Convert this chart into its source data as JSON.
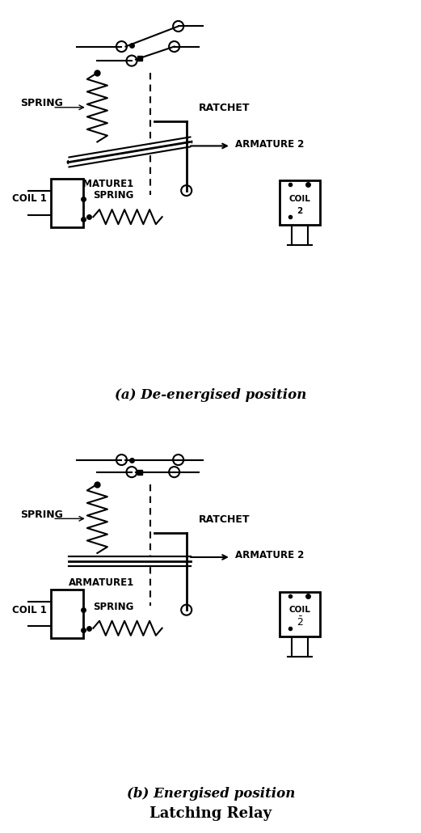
{
  "bg_color": "#ffffff",
  "line_color": "#000000",
  "title_a": "(a) De-energised position",
  "title_b": "(b) Energised position",
  "main_title": "Latching Relay",
  "labels": {
    "spring_a": "SPRING",
    "spring_b": "SPRING",
    "ratchet_a": "RATCHET",
    "ratchet_b": "RATCHET",
    "armature1_a": "ARMATURE1",
    "armature1_b": "ARMATURE1",
    "armature2_a": "ARMATURE 2",
    "armature2_b": "ARMATURE 2",
    "coil1_a": "COIL 1",
    "coil1_b": "COIL 1",
    "spring2_a": "SPRING",
    "spring2_b": "SPRING",
    "coil2_a": "COIL\n2",
    "coil2_b": "COIL\n¯2"
  }
}
